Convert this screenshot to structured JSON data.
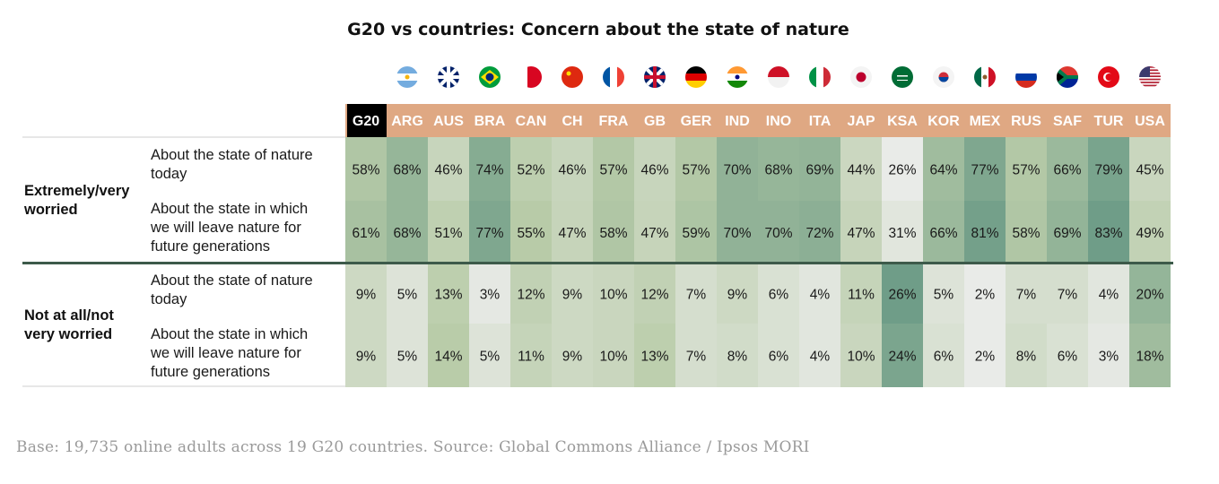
{
  "chart_data": {
    "type": "table",
    "title": "G20 vs countries: Concern about the state of nature",
    "columns": [
      "G20",
      "ARG",
      "AUS",
      "BRA",
      "CAN",
      "CH",
      "FRA",
      "GB",
      "GER",
      "IND",
      "INO",
      "ITA",
      "JAP",
      "KSA",
      "KOR",
      "MEX",
      "RUS",
      "SAF",
      "TUR",
      "USA"
    ],
    "flag_icons": [
      "",
      "flag-argentina-icon",
      "flag-australia-icon",
      "flag-brazil-icon",
      "flag-canada-icon",
      "flag-china-icon",
      "flag-france-icon",
      "flag-uk-icon",
      "flag-germany-icon",
      "flag-india-icon",
      "flag-indonesia-icon",
      "flag-italy-icon",
      "flag-japan-icon",
      "flag-saudi-arabia-icon",
      "flag-south-korea-icon",
      "flag-mexico-icon",
      "flag-russia-icon",
      "flag-south-africa-icon",
      "flag-turkey-icon",
      "flag-usa-icon"
    ],
    "groups": [
      {
        "label": "Extremely/very worried",
        "rows": [
          {
            "label": "About the state of nature today",
            "values": [
              58,
              68,
              46,
              74,
              52,
              46,
              57,
              46,
              57,
              70,
              68,
              69,
              44,
              26,
              64,
              77,
              57,
              66,
              79,
              45
            ]
          },
          {
            "label": "About the state in which we will leave nature for future generations",
            "values": [
              61,
              68,
              51,
              77,
              55,
              47,
              58,
              47,
              59,
              70,
              70,
              72,
              47,
              31,
              66,
              81,
              58,
              69,
              83,
              49
            ]
          }
        ]
      },
      {
        "label": "Not at all/not very worried",
        "rows": [
          {
            "label": "About the state of nature today",
            "values": [
              9,
              5,
              13,
              3,
              12,
              9,
              10,
              12,
              7,
              9,
              6,
              4,
              11,
              26,
              5,
              2,
              7,
              7,
              4,
              20
            ]
          },
          {
            "label": "About the state in which we will leave nature for future generations",
            "values": [
              9,
              5,
              14,
              5,
              11,
              9,
              10,
              13,
              7,
              8,
              6,
              4,
              10,
              24,
              6,
              2,
              8,
              6,
              3,
              18
            ]
          }
        ]
      }
    ],
    "value_suffix": "%",
    "footnote": "Base: 19,735 online adults across 19 G20 countries. Source: Global Commons Alliance / Ipsos MORI"
  },
  "colors": {
    "header_bar": "#dfa883",
    "g20_header": "#000000",
    "header_text": "#ffffff",
    "divider": "#3d5a4a",
    "heat_low": "#e9ebe8",
    "heat_mid": "#b9cca9",
    "heat_high": "#6f9d88"
  }
}
